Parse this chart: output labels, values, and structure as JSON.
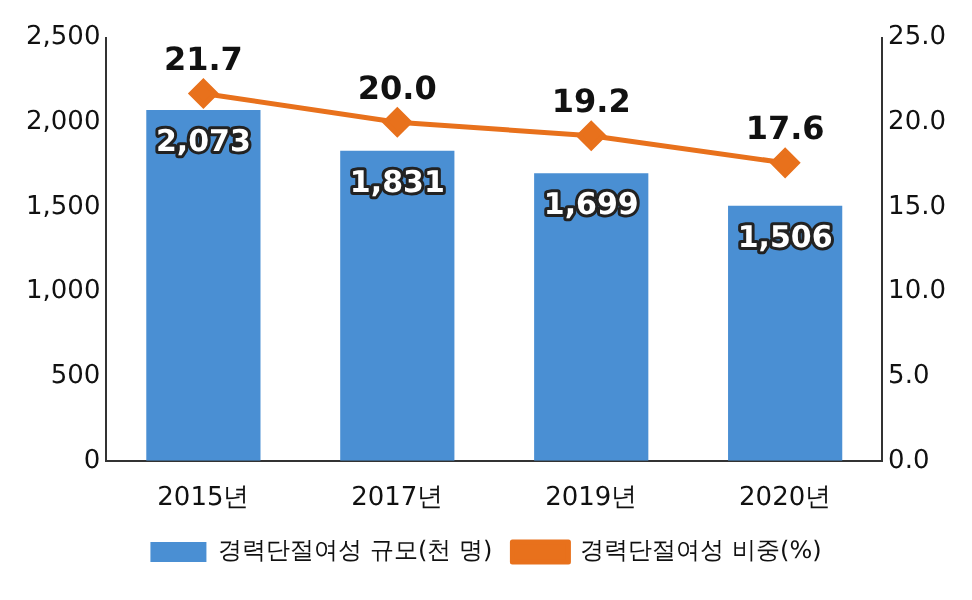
{
  "chart_data": {
    "type": "bar",
    "categories": [
      "2015년",
      "2017년",
      "2019년",
      "2020년"
    ],
    "series": [
      {
        "name": "경력단절여성 규모(천 명)",
        "color": "#4a8fd3",
        "values": [
          2073,
          1831,
          1699,
          1506
        ],
        "value_labels": [
          "2,073",
          "1,831",
          "1,699",
          "1,506"
        ]
      },
      {
        "name": "경력단절여성 비중(%)",
        "type": "line",
        "axis": "y2",
        "color": "#e8711c",
        "values": [
          21.7,
          20.0,
          19.2,
          17.6
        ],
        "value_labels": [
          "21.7",
          "20.0",
          "19.2",
          "17.6"
        ]
      }
    ],
    "ylim": [
      0,
      2500
    ],
    "yticks": [
      0,
      500,
      {
        "value": 1000,
        "label": "1,000"
      },
      {
        "value": 1500,
        "label": "1,500"
      },
      {
        "value": 2000,
        "label": "2,000"
      },
      {
        "value": 2500,
        "label": "2,500"
      }
    ],
    "y2lim": [
      0,
      25
    ],
    "y2ticks": [
      {
        "value": 0,
        "label": "0.0"
      },
      {
        "value": 5,
        "label": "5.0"
      },
      {
        "value": 10,
        "label": "10.0"
      },
      {
        "value": 15,
        "label": "15.0"
      },
      {
        "value": 20,
        "label": "20.0"
      },
      {
        "value": 25,
        "label": "25.0"
      }
    ],
    "grid": false,
    "legend": "bottom",
    "marker": "diamond",
    "line_style": "solid"
  }
}
